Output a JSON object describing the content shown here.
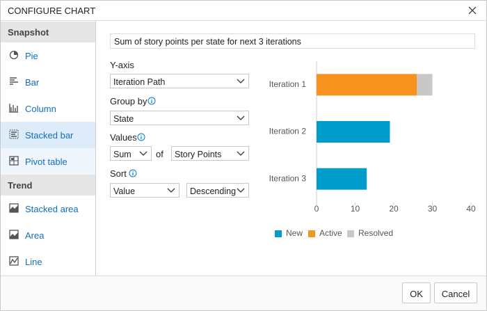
{
  "dialog": {
    "title": "CONFIGURE CHART"
  },
  "sidebar": {
    "sections": [
      {
        "header": "Snapshot",
        "items": [
          "Pie",
          "Bar",
          "Column",
          "Stacked bar",
          "Pivot table"
        ]
      },
      {
        "header": "Trend",
        "items": [
          "Stacked area",
          "Area",
          "Line"
        ]
      }
    ]
  },
  "form": {
    "chart_title": "Sum of story points per state for next 3 iterations",
    "y_axis": {
      "label": "Y-axis",
      "value": "Iteration Path"
    },
    "group_by": {
      "label": "Group by",
      "value": "State"
    },
    "values": {
      "label": "Values",
      "aggregation": "Sum",
      "of": "of",
      "field": "Story Points"
    },
    "sort": {
      "label": "Sort",
      "field": "Value",
      "order": "Descending"
    }
  },
  "chart_data": {
    "type": "stacked_hbar",
    "categories": [
      "Iteration 1",
      "Iteration 2",
      "Iteration 3"
    ],
    "series": [
      {
        "name": "New",
        "color": "#009ccc",
        "values": [
          0,
          19,
          13
        ]
      },
      {
        "name": "Active",
        "color": "#f7921e",
        "values": [
          26,
          0,
          0
        ]
      },
      {
        "name": "Resolved",
        "color": "#c8c8c8",
        "values": [
          4,
          0,
          0
        ]
      }
    ],
    "xlim": [
      0,
      40
    ],
    "xticks": [
      0,
      10,
      20,
      30,
      40
    ],
    "grid": false,
    "legend": "bottom"
  },
  "buttons": {
    "ok": "OK",
    "cancel": "Cancel"
  }
}
